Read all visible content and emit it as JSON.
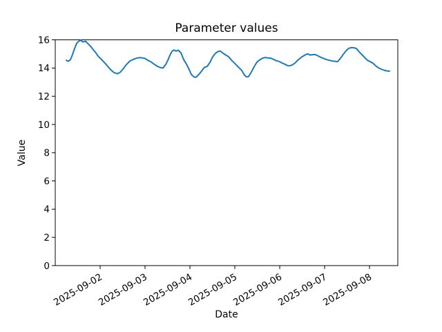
{
  "figure": {
    "background": "#ffffff"
  },
  "chart_data": {
    "type": "line",
    "title": "Parameter values",
    "xlabel": "Date",
    "ylabel": "Value",
    "ylim": [
      0,
      16
    ],
    "yticks": [
      0,
      2,
      4,
      6,
      8,
      10,
      12,
      14,
      16
    ],
    "grid": false,
    "legend": false,
    "line_color": "#1f77b4",
    "x_axis": {
      "start_date": "2025-09-01",
      "range_days": [
        0,
        7.63
      ],
      "tick_positions_days": [
        1,
        2,
        3,
        4,
        5,
        6,
        7
      ],
      "tick_labels": [
        "2025-09-02",
        "2025-09-03",
        "2025-09-04",
        "2025-09-05",
        "2025-09-06",
        "2025-09-07",
        "2025-09-08"
      ],
      "tick_rotation_deg": 30
    },
    "series": [
      {
        "name": "Parameter values",
        "points_days_value": [
          [
            0.246,
            14.55
          ],
          [
            0.292,
            14.48
          ],
          [
            0.338,
            14.6
          ],
          [
            0.385,
            14.95
          ],
          [
            0.431,
            15.38
          ],
          [
            0.477,
            15.75
          ],
          [
            0.523,
            15.9
          ],
          [
            0.569,
            15.97
          ],
          [
            0.615,
            15.85
          ],
          [
            0.677,
            15.9
          ],
          [
            0.723,
            15.75
          ],
          [
            0.785,
            15.55
          ],
          [
            0.846,
            15.3
          ],
          [
            0.892,
            15.13
          ],
          [
            0.954,
            14.85
          ],
          [
            1.0,
            14.7
          ],
          [
            1.046,
            14.55
          ],
          [
            1.092,
            14.4
          ],
          [
            1.154,
            14.18
          ],
          [
            1.2,
            14.0
          ],
          [
            1.246,
            13.85
          ],
          [
            1.308,
            13.68
          ],
          [
            1.385,
            13.6
          ],
          [
            1.446,
            13.7
          ],
          [
            1.508,
            13.92
          ],
          [
            1.585,
            14.25
          ],
          [
            1.662,
            14.49
          ],
          [
            1.738,
            14.62
          ],
          [
            1.815,
            14.7
          ],
          [
            1.877,
            14.74
          ],
          [
            1.938,
            14.72
          ],
          [
            2.0,
            14.68
          ],
          [
            2.062,
            14.55
          ],
          [
            2.123,
            14.46
          ],
          [
            2.2,
            14.28
          ],
          [
            2.277,
            14.12
          ],
          [
            2.338,
            14.04
          ],
          [
            2.4,
            14.0
          ],
          [
            2.462,
            14.25
          ],
          [
            2.508,
            14.55
          ],
          [
            2.554,
            14.9
          ],
          [
            2.6,
            15.18
          ],
          [
            2.646,
            15.28
          ],
          [
            2.692,
            15.2
          ],
          [
            2.738,
            15.27
          ],
          [
            2.8,
            15.08
          ],
          [
            2.862,
            14.6
          ],
          [
            2.923,
            14.28
          ],
          [
            2.985,
            13.88
          ],
          [
            3.031,
            13.55
          ],
          [
            3.092,
            13.37
          ],
          [
            3.138,
            13.35
          ],
          [
            3.2,
            13.55
          ],
          [
            3.262,
            13.8
          ],
          [
            3.323,
            14.05
          ],
          [
            3.385,
            14.12
          ],
          [
            3.446,
            14.4
          ],
          [
            3.508,
            14.8
          ],
          [
            3.569,
            15.05
          ],
          [
            3.631,
            15.18
          ],
          [
            3.677,
            15.2
          ],
          [
            3.738,
            15.05
          ],
          [
            3.8,
            14.92
          ],
          [
            3.862,
            14.8
          ],
          [
            3.923,
            14.57
          ],
          [
            4.0,
            14.33
          ],
          [
            4.077,
            14.08
          ],
          [
            4.154,
            13.84
          ],
          [
            4.215,
            13.5
          ],
          [
            4.262,
            13.37
          ],
          [
            4.308,
            13.4
          ],
          [
            4.369,
            13.72
          ],
          [
            4.431,
            14.1
          ],
          [
            4.492,
            14.42
          ],
          [
            4.554,
            14.58
          ],
          [
            4.615,
            14.7
          ],
          [
            4.677,
            14.75
          ],
          [
            4.738,
            14.72
          ],
          [
            4.8,
            14.7
          ],
          [
            4.862,
            14.62
          ],
          [
            4.923,
            14.52
          ],
          [
            4.985,
            14.47
          ],
          [
            5.046,
            14.37
          ],
          [
            5.108,
            14.28
          ],
          [
            5.169,
            14.18
          ],
          [
            5.215,
            14.15
          ],
          [
            5.277,
            14.22
          ],
          [
            5.338,
            14.35
          ],
          [
            5.4,
            14.55
          ],
          [
            5.462,
            14.72
          ],
          [
            5.523,
            14.85
          ],
          [
            5.585,
            14.97
          ],
          [
            5.631,
            15.0
          ],
          [
            5.677,
            14.92
          ],
          [
            5.738,
            14.95
          ],
          [
            5.8,
            14.95
          ],
          [
            5.862,
            14.85
          ],
          [
            5.923,
            14.75
          ],
          [
            5.985,
            14.67
          ],
          [
            6.046,
            14.6
          ],
          [
            6.108,
            14.55
          ],
          [
            6.169,
            14.5
          ],
          [
            6.231,
            14.48
          ],
          [
            6.292,
            14.46
          ],
          [
            6.354,
            14.7
          ],
          [
            6.415,
            14.97
          ],
          [
            6.477,
            15.22
          ],
          [
            6.538,
            15.4
          ],
          [
            6.6,
            15.45
          ],
          [
            6.662,
            15.43
          ],
          [
            6.708,
            15.38
          ],
          [
            6.769,
            15.15
          ],
          [
            6.831,
            14.95
          ],
          [
            6.892,
            14.75
          ],
          [
            6.954,
            14.55
          ],
          [
            7.015,
            14.45
          ],
          [
            7.077,
            14.35
          ],
          [
            7.138,
            14.15
          ],
          [
            7.2,
            14.02
          ],
          [
            7.262,
            13.92
          ],
          [
            7.323,
            13.85
          ],
          [
            7.385,
            13.8
          ],
          [
            7.446,
            13.78
          ]
        ]
      }
    ]
  }
}
